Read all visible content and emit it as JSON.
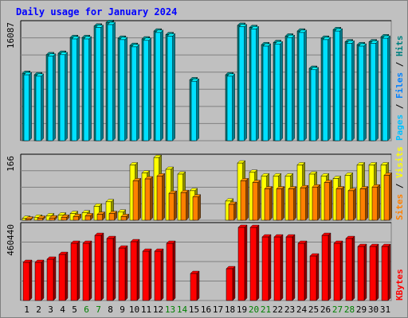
{
  "chart_data": {
    "type": "bar",
    "title": "Daily usage for January 2024",
    "categories": [
      "1",
      "2",
      "3",
      "4",
      "5",
      "6",
      "7",
      "8",
      "9",
      "10",
      "11",
      "12",
      "13",
      "14",
      "15",
      "16",
      "17",
      "18",
      "19",
      "20",
      "21",
      "22",
      "23",
      "24",
      "25",
      "26",
      "27",
      "28",
      "29",
      "30",
      "31"
    ],
    "weekend_days": [
      "6",
      "7",
      "13",
      "14",
      "20",
      "21",
      "27",
      "28"
    ],
    "panels": [
      {
        "id": "hits-files-pages",
        "max_label": "16087",
        "ymax": 16087,
        "legend": [
          "Pages",
          "Files",
          "Hits"
        ],
        "series": [
          {
            "name": "Hits",
            "color": "#008080",
            "values": [
              9400,
              9200,
              12000,
              12200,
              14400,
              14400,
              16000,
              16500,
              14300,
              13300,
              14200,
              15300,
              14800,
              0,
              8500,
              0,
              0,
              9200,
              16100,
              15800,
              13400,
              13700,
              14600,
              15300,
              10100,
              14300,
              15500,
              13800,
              13400,
              13800,
              14500
            ]
          },
          {
            "name": "Files",
            "color": "#00e0ff",
            "values": [
              9200,
              9000,
              11800,
              12000,
              14200,
              14200,
              15800,
              16200,
              14100,
              13100,
              14000,
              15100,
              14600,
              0,
              8300,
              0,
              0,
              9000,
              15900,
              15600,
              13200,
              13500,
              14400,
              15100,
              9900,
              14100,
              15300,
              13600,
              13200,
              13600,
              14300
            ]
          },
          {
            "name": "Pages",
            "color": "#00c0ff",
            "values": [
              0,
              0,
              0,
              0,
              0,
              0,
              0,
              0,
              0,
              0,
              0,
              0,
              0,
              0,
              0,
              0,
              0,
              0,
              0,
              0,
              0,
              0,
              0,
              0,
              0,
              0,
              0,
              0,
              0,
              0,
              0
            ]
          }
        ]
      },
      {
        "id": "visits-sites",
        "max_label": "166",
        "ymax": 166,
        "legend": [
          "Sites",
          "Visits"
        ],
        "series": [
          {
            "name": "Visits",
            "color": "#ffff00",
            "values": [
              5,
              8,
              12,
              14,
              18,
              20,
              38,
              50,
              22,
              150,
              128,
              170,
              138,
              125,
              80,
              0,
              0,
              52,
              155,
              130,
              120,
              120,
              120,
              150,
              125,
              120,
              113,
              122,
              150,
              150,
              150
            ]
          },
          {
            "name": "Sites",
            "color": "#ff8000",
            "values": [
              3,
              5,
              6,
              8,
              10,
              12,
              16,
              18,
              10,
              107,
              112,
              120,
              73,
              75,
              63,
              0,
              0,
              43,
              107,
              102,
              85,
              85,
              85,
              88,
              90,
              102,
              85,
              80,
              85,
              90,
              122
            ]
          }
        ]
      },
      {
        "id": "kbytes",
        "max_label": "460440",
        "ymax": 460440,
        "legend": [
          "KBytes"
        ],
        "series": [
          {
            "name": "KBytes",
            "color": "#ff0000",
            "values": [
              240000,
              240000,
              260000,
              290000,
              360000,
              360000,
              410000,
              390000,
              330000,
              370000,
              310000,
              310000,
              360000,
              0,
              170000,
              0,
              0,
              200000,
              460440,
              460000,
              400000,
              400000,
              400000,
              360000,
              280000,
              410000,
              360000,
              390000,
              340000,
              340000,
              340000
            ]
          }
        ]
      }
    ],
    "grid": true,
    "legend_placement": "right"
  }
}
